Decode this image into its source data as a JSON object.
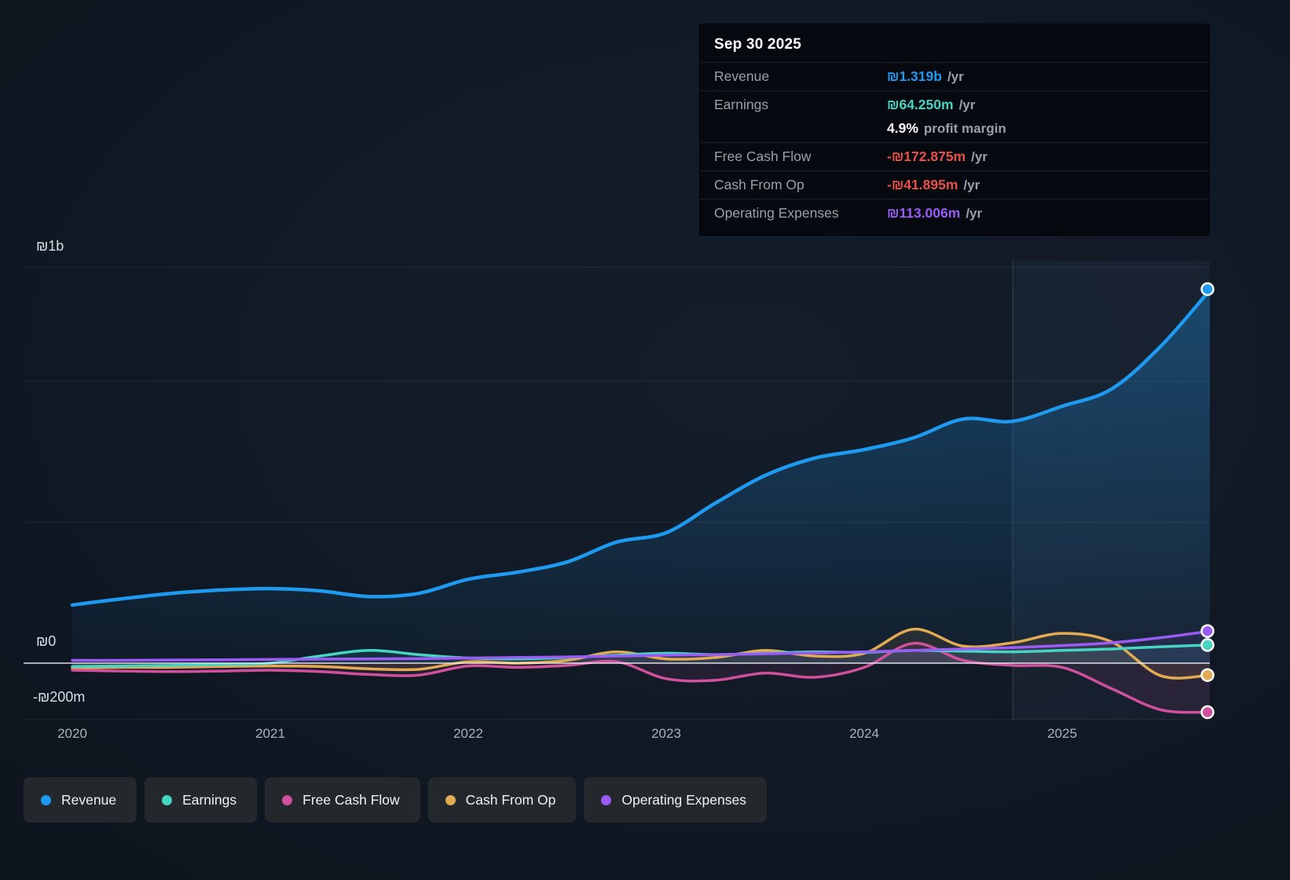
{
  "tooltip": {
    "date": "Sep 30 2025",
    "rows": [
      {
        "label": "Revenue",
        "value": "₪1.319b",
        "suffix": "/yr",
        "color": "#1e9bf0"
      },
      {
        "label": "Earnings",
        "value": "₪64.250m",
        "suffix": "/yr",
        "color": "#46d4c3"
      },
      {
        "label": "",
        "value": "4.9%",
        "suffix": "profit margin",
        "color": "#ffffff"
      },
      {
        "label": "Free Cash Flow",
        "value": "-₪172.875m",
        "suffix": "/yr",
        "color": "#e8504a"
      },
      {
        "label": "Cash From Op",
        "value": "-₪41.895m",
        "suffix": "/yr",
        "color": "#e8504a"
      },
      {
        "label": "Operating Expenses",
        "value": "₪113.006m",
        "suffix": "/yr",
        "color": "#9b5bf5"
      }
    ]
  },
  "legend": {
    "items": [
      {
        "label": "Revenue",
        "slug": "revenue",
        "color": "#1e9bf0"
      },
      {
        "label": "Earnings",
        "slug": "earnings",
        "color": "#46d4c3"
      },
      {
        "label": "Free Cash Flow",
        "slug": "free-cash-flow",
        "color": "#d0509d"
      },
      {
        "label": "Cash From Op",
        "slug": "cash-from-op",
        "color": "#e2aa53"
      },
      {
        "label": "Operating Expenses",
        "slug": "operating-expenses",
        "color": "#9b5bf5"
      }
    ]
  },
  "chart_data": {
    "type": "line",
    "x_unit": "year",
    "values_unit": "₪ millions",
    "x": [
      2020,
      2020.25,
      2020.5,
      2020.75,
      2021,
      2021.25,
      2021.5,
      2021.75,
      2022,
      2022.25,
      2022.5,
      2022.75,
      2023,
      2023.25,
      2023.5,
      2023.75,
      2024,
      2024.25,
      2024.5,
      2024.75,
      2025,
      2025.25,
      2025.5,
      2025.75
    ],
    "series": [
      {
        "name": "Revenue",
        "slug": "revenue",
        "color": "#1e9bf0",
        "values_m": [
          205,
          227,
          246,
          258,
          263,
          255,
          235,
          246,
          296,
          321,
          357,
          427,
          460,
          565,
          662,
          723,
          753,
          795,
          861,
          853,
          906,
          967,
          1119,
          1319
        ]
      },
      {
        "name": "Earnings",
        "slug": "earnings",
        "color": "#46d4c3",
        "values_m": [
          -12,
          -10,
          -8,
          -5,
          0,
          25,
          45,
          30,
          18,
          15,
          20,
          28,
          35,
          30,
          35,
          40,
          38,
          45,
          42,
          40,
          45,
          50,
          58,
          64
        ]
      },
      {
        "name": "Free Cash Flow",
        "slug": "free-cash-flow",
        "color": "#d0509d",
        "values_m": [
          -25,
          -28,
          -30,
          -28,
          -25,
          -30,
          -40,
          -42,
          -10,
          -15,
          -8,
          5,
          -55,
          -60,
          -35,
          -50,
          -15,
          70,
          10,
          -8,
          -15,
          -90,
          -165,
          -173
        ]
      },
      {
        "name": "Cash From Op",
        "slug": "cash-from-op",
        "color": "#e2aa53",
        "values_m": [
          -18,
          -15,
          -15,
          -12,
          -10,
          -12,
          -20,
          -22,
          5,
          0,
          10,
          40,
          15,
          20,
          45,
          25,
          35,
          120,
          60,
          72,
          105,
          75,
          -45,
          -42
        ]
      },
      {
        "name": "Operating Expenses",
        "slug": "operating-expenses",
        "color": "#9b5bf5",
        "values_m": [
          10,
          10,
          11,
          12,
          13,
          14,
          15,
          16,
          18,
          20,
          22,
          25,
          28,
          30,
          33,
          36,
          40,
          45,
          50,
          55,
          62,
          72,
          90,
          113
        ]
      }
    ],
    "y_ticks": [
      "₪1b",
      "₪0",
      "-₪200m"
    ],
    "x_ticks": [
      "2020",
      "2021",
      "2022",
      "2023",
      "2024",
      "2025"
    ],
    "ylim_m": [
      -200,
      1400
    ],
    "grid": true,
    "legend_position": "bottom",
    "highlight_start_x": 2024.75
  }
}
